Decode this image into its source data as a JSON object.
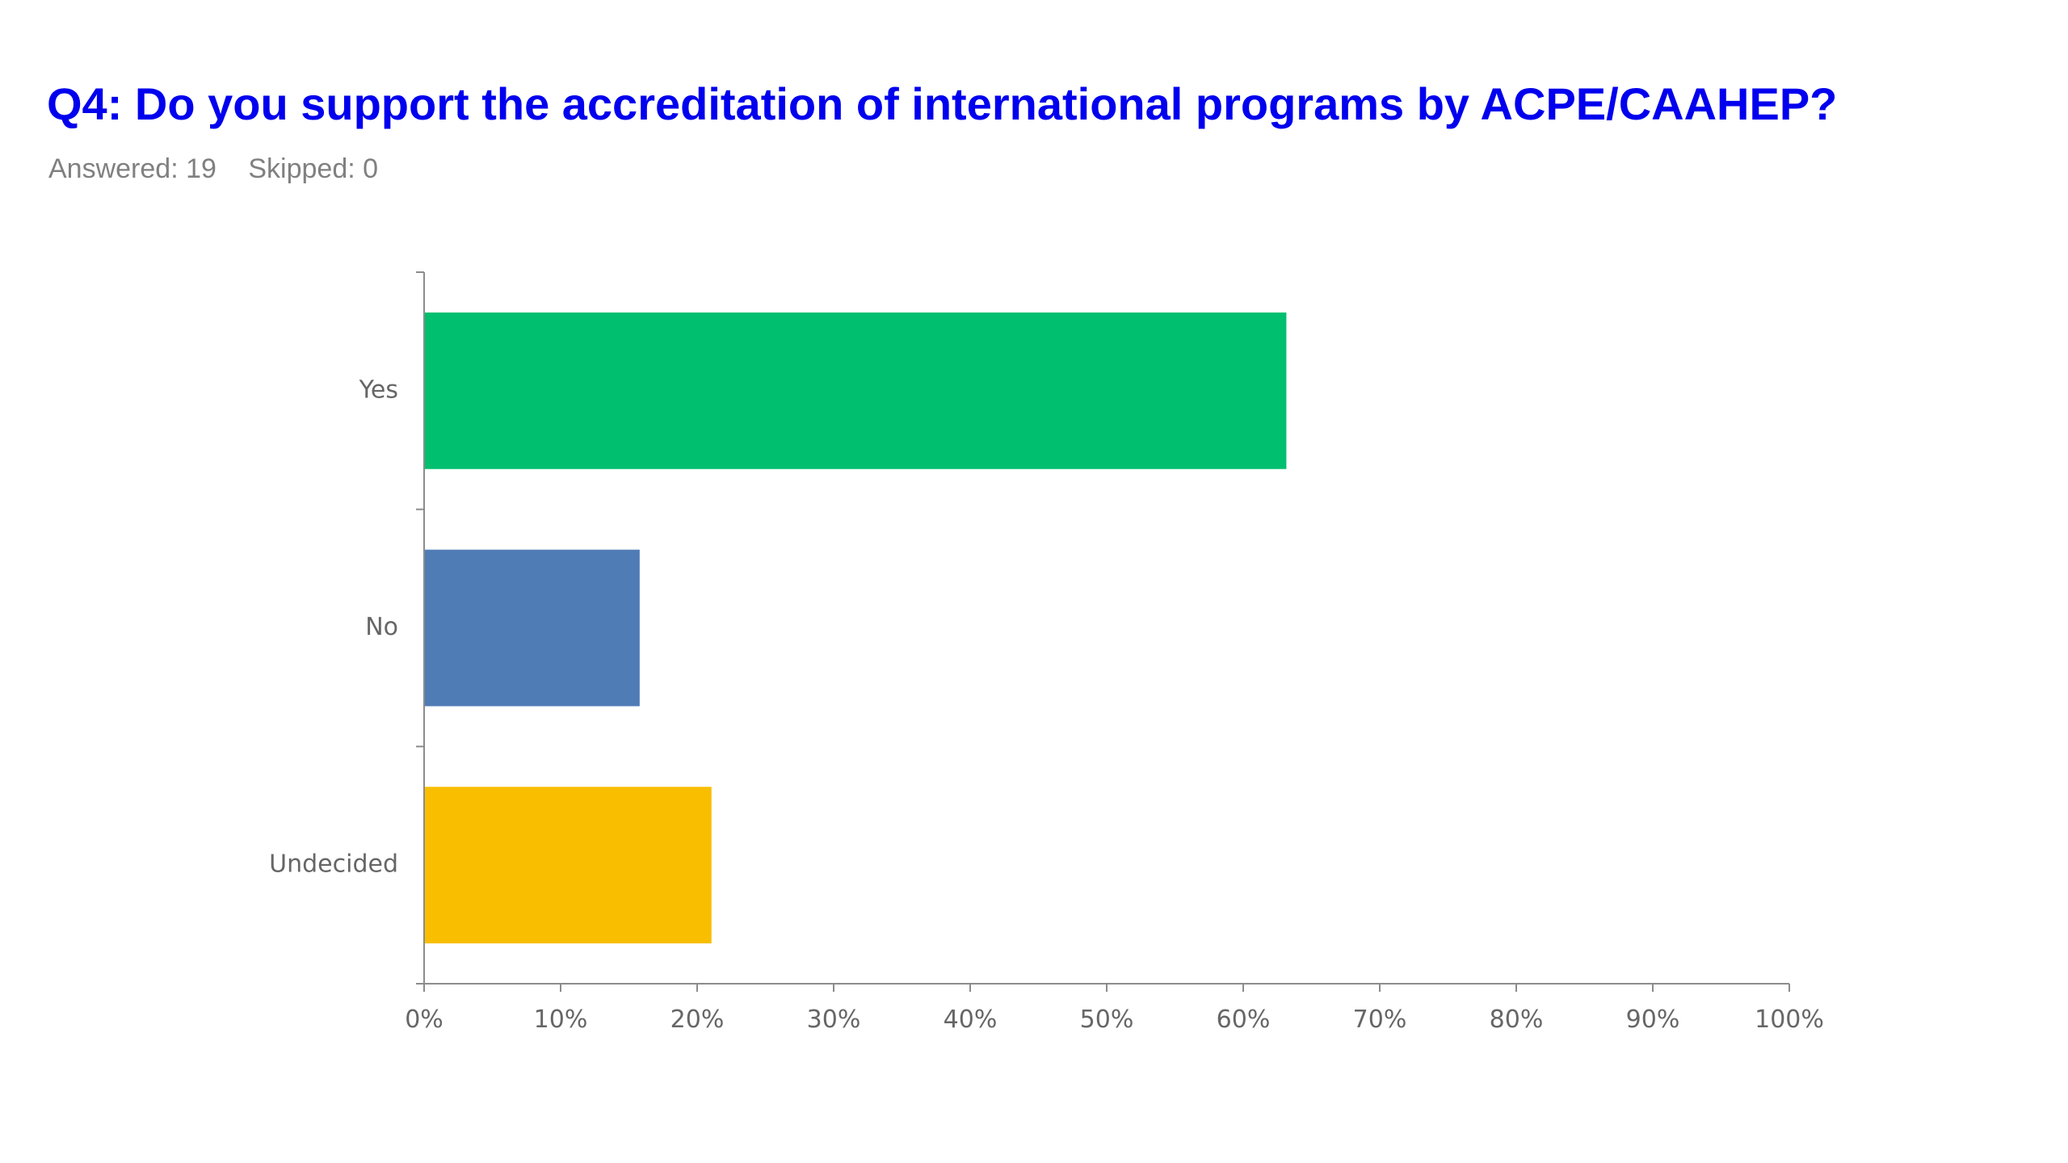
{
  "header": {
    "title": "Q4: Do you support the accreditation of international programs by ACPE/CAAHEP?",
    "answered": "Answered: 19",
    "skipped": "Skipped: 0"
  },
  "chart_data": {
    "type": "bar",
    "orientation": "horizontal",
    "categories": [
      "Yes",
      "No",
      "Undecided"
    ],
    "values": [
      63.16,
      15.79,
      21.05
    ],
    "colors": [
      "#00bf6f",
      "#507cb6",
      "#f9be00"
    ],
    "xlim": [
      0,
      100
    ],
    "xticks": [
      "0%",
      "10%",
      "20%",
      "30%",
      "40%",
      "50%",
      "60%",
      "70%",
      "80%",
      "90%",
      "100%"
    ],
    "grid": false,
    "axis_color": "#8c8c8c"
  }
}
